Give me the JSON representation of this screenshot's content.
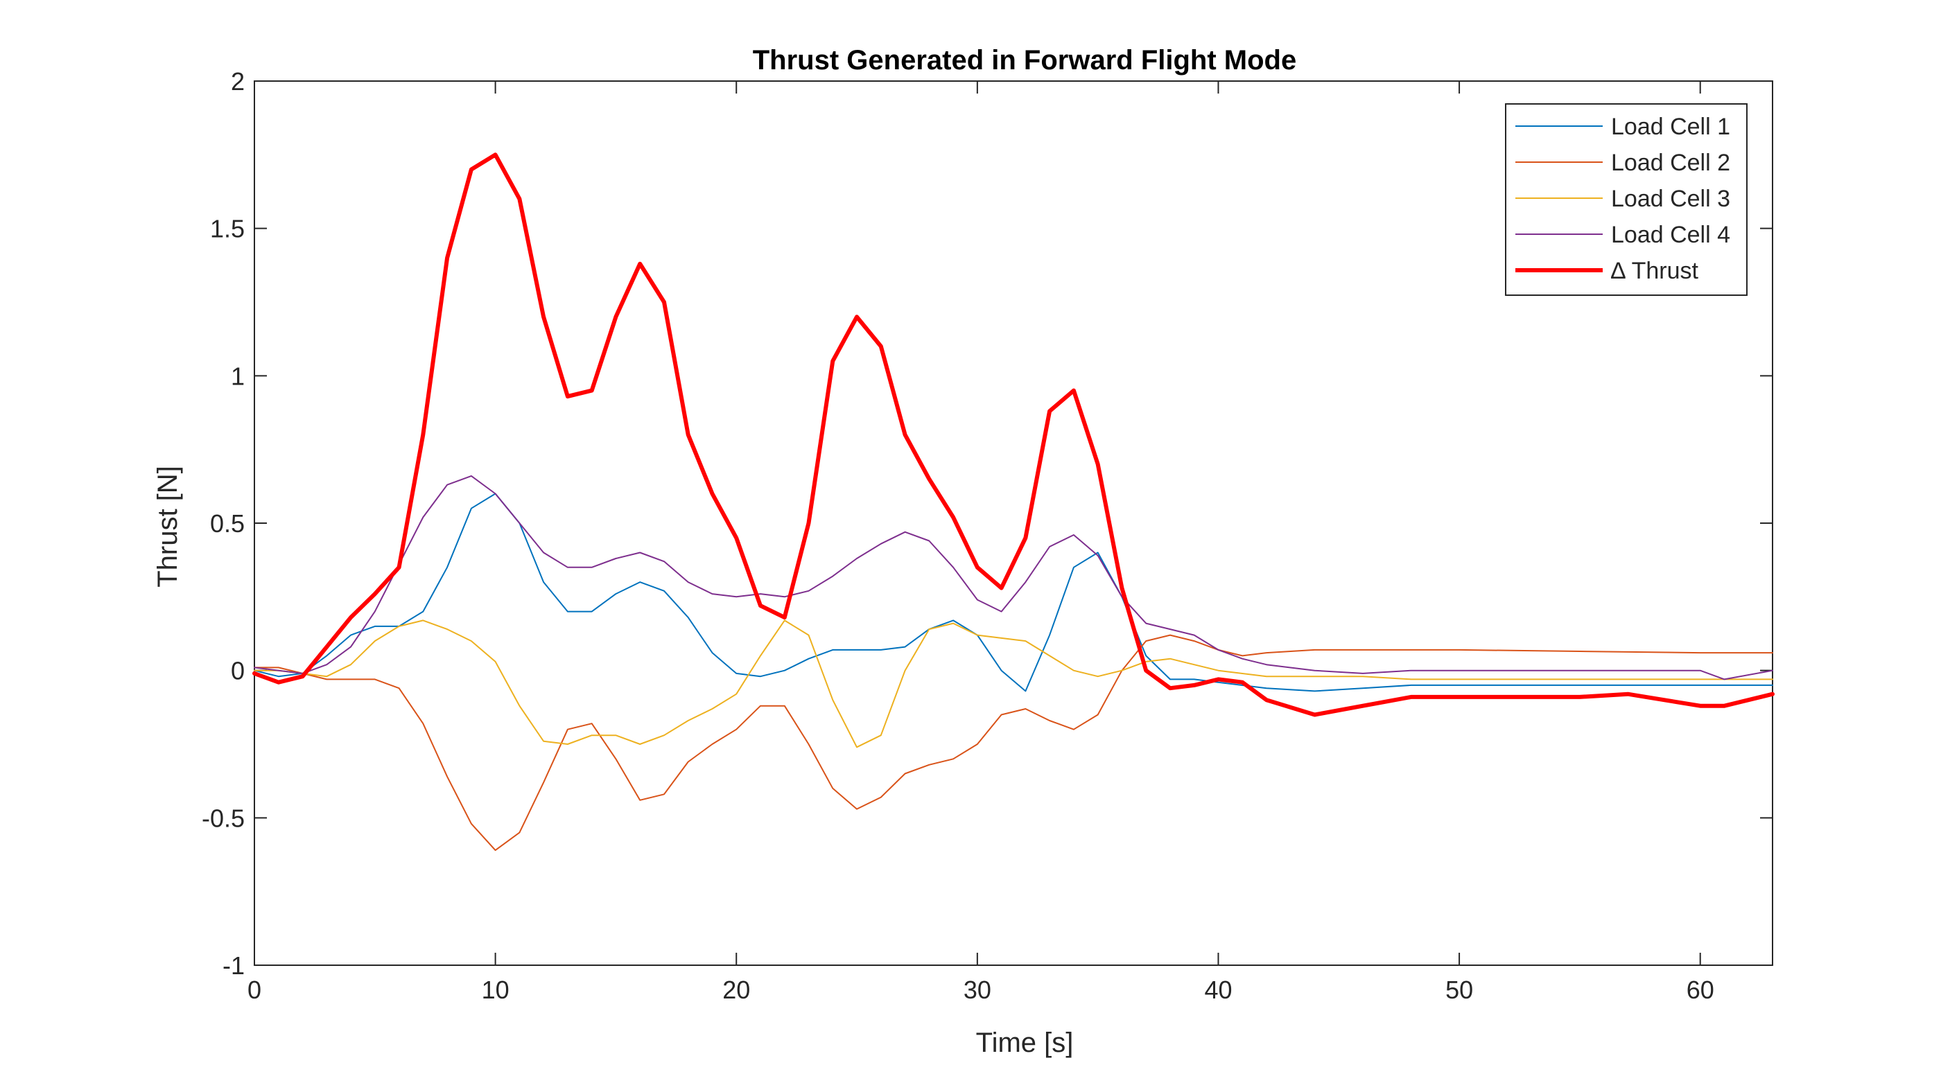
{
  "chart_data": {
    "type": "line",
    "title": "Thrust Generated in Forward Flight Mode",
    "xlabel": "Time [s]",
    "ylabel": "Thrust [N]",
    "xlim": [
      0,
      63
    ],
    "ylim": [
      -1,
      2
    ],
    "xticks": [
      0,
      10,
      20,
      30,
      40,
      50,
      60
    ],
    "yticks": [
      -1,
      -0.5,
      0,
      0.5,
      1,
      1.5,
      2
    ],
    "xtick_labels": [
      "0",
      "10",
      "20",
      "30",
      "40",
      "50",
      "60"
    ],
    "ytick_labels": [
      "-1",
      "-0.5",
      "0",
      "0.5",
      "1",
      "1.5",
      "2"
    ],
    "grid": false,
    "box": true,
    "legend_position": "top-right",
    "series": [
      {
        "name": "Load Cell 1",
        "color": "#0072BD",
        "width": 1,
        "x": [
          0,
          1,
          2,
          3,
          4,
          5,
          6,
          7,
          8,
          9,
          10,
          11,
          12,
          13,
          14,
          15,
          16,
          17,
          18,
          19,
          20,
          21,
          22,
          23,
          24,
          25,
          26,
          27,
          28,
          29,
          30,
          31,
          32,
          33,
          34,
          35,
          36,
          37,
          38,
          39,
          40,
          42,
          44,
          46,
          48,
          50,
          55,
          60,
          63
        ],
        "y": [
          0.0,
          -0.02,
          -0.01,
          0.05,
          0.12,
          0.15,
          0.15,
          0.2,
          0.35,
          0.55,
          0.6,
          0.5,
          0.3,
          0.2,
          0.2,
          0.26,
          0.3,
          0.27,
          0.18,
          0.06,
          -0.01,
          -0.02,
          0.0,
          0.04,
          0.07,
          0.07,
          0.07,
          0.08,
          0.14,
          0.17,
          0.12,
          0.0,
          -0.07,
          0.12,
          0.35,
          0.4,
          0.25,
          0.05,
          -0.03,
          -0.03,
          -0.04,
          -0.06,
          -0.07,
          -0.06,
          -0.05,
          -0.05,
          -0.05,
          -0.05,
          -0.05
        ]
      },
      {
        "name": "Load Cell 2",
        "color": "#D95319",
        "width": 1,
        "x": [
          0,
          1,
          2,
          3,
          4,
          5,
          6,
          7,
          8,
          9,
          10,
          11,
          12,
          13,
          14,
          15,
          16,
          17,
          18,
          19,
          20,
          21,
          22,
          23,
          24,
          25,
          26,
          27,
          28,
          29,
          30,
          31,
          32,
          33,
          34,
          35,
          36,
          37,
          38,
          39,
          40,
          41,
          42,
          44,
          46,
          48,
          50,
          55,
          60,
          63
        ],
        "y": [
          0.01,
          0.01,
          -0.01,
          -0.03,
          -0.03,
          -0.03,
          -0.06,
          -0.18,
          -0.36,
          -0.52,
          -0.61,
          -0.55,
          -0.38,
          -0.2,
          -0.18,
          -0.3,
          -0.44,
          -0.42,
          -0.31,
          -0.25,
          -0.2,
          -0.12,
          -0.12,
          -0.25,
          -0.4,
          -0.47,
          -0.43,
          -0.35,
          -0.32,
          -0.3,
          -0.25,
          -0.15,
          -0.13,
          -0.17,
          -0.2,
          -0.15,
          0.0,
          0.1,
          0.12,
          0.1,
          0.07,
          0.05,
          0.06,
          0.07,
          0.07,
          0.07,
          0.07,
          0.065,
          0.06,
          0.06
        ]
      },
      {
        "name": "Load Cell 3",
        "color": "#EDB120",
        "width": 1,
        "x": [
          0,
          1,
          2,
          3,
          4,
          5,
          6,
          7,
          8,
          9,
          10,
          11,
          12,
          13,
          14,
          15,
          16,
          17,
          18,
          19,
          20,
          21,
          22,
          23,
          24,
          25,
          26,
          27,
          28,
          29,
          30,
          31,
          32,
          33,
          34,
          35,
          36,
          37,
          38,
          39,
          40,
          42,
          44,
          46,
          48,
          50,
          55,
          60,
          63
        ],
        "y": [
          0.0,
          0.0,
          -0.01,
          -0.02,
          0.02,
          0.1,
          0.15,
          0.17,
          0.14,
          0.1,
          0.03,
          -0.12,
          -0.24,
          -0.25,
          -0.22,
          -0.22,
          -0.25,
          -0.22,
          -0.17,
          -0.13,
          -0.08,
          0.05,
          0.17,
          0.12,
          -0.1,
          -0.26,
          -0.22,
          0.0,
          0.14,
          0.16,
          0.12,
          0.11,
          0.1,
          0.05,
          0.0,
          -0.02,
          0.0,
          0.03,
          0.04,
          0.02,
          0.0,
          -0.02,
          -0.02,
          -0.02,
          -0.03,
          -0.03,
          -0.03,
          -0.03,
          -0.03
        ]
      },
      {
        "name": "Load Cell 4",
        "color": "#7E2F8E",
        "width": 1,
        "x": [
          0,
          1,
          2,
          3,
          4,
          5,
          6,
          7,
          8,
          9,
          10,
          11,
          12,
          13,
          14,
          15,
          16,
          17,
          18,
          19,
          20,
          21,
          22,
          23,
          24,
          25,
          26,
          27,
          28,
          29,
          30,
          31,
          32,
          33,
          34,
          35,
          36,
          37,
          38,
          39,
          40,
          41,
          42,
          44,
          46,
          48,
          50,
          55,
          60,
          61,
          63
        ],
        "y": [
          0.01,
          0.0,
          -0.01,
          0.02,
          0.08,
          0.2,
          0.36,
          0.52,
          0.63,
          0.66,
          0.6,
          0.5,
          0.4,
          0.35,
          0.35,
          0.38,
          0.4,
          0.37,
          0.3,
          0.26,
          0.25,
          0.26,
          0.25,
          0.27,
          0.32,
          0.38,
          0.43,
          0.47,
          0.44,
          0.35,
          0.24,
          0.2,
          0.3,
          0.42,
          0.46,
          0.39,
          0.25,
          0.16,
          0.14,
          0.12,
          0.07,
          0.04,
          0.02,
          0.0,
          -0.01,
          0.0,
          0.0,
          0.0,
          0.0,
          -0.03,
          0.0
        ]
      },
      {
        "name": "∆ Thrust",
        "color": "#FF0000",
        "width": 3,
        "x": [
          0,
          1,
          2,
          3,
          4,
          5,
          6,
          7,
          8,
          9,
          10,
          11,
          12,
          13,
          14,
          15,
          16,
          17,
          18,
          19,
          20,
          21,
          22,
          23,
          24,
          25,
          26,
          27,
          28,
          29,
          30,
          31,
          32,
          33,
          34,
          35,
          36,
          37,
          38,
          39,
          40,
          41,
          42,
          44,
          46,
          48,
          50,
          55,
          57,
          60,
          61,
          63
        ],
        "y": [
          -0.01,
          -0.04,
          -0.02,
          0.08,
          0.18,
          0.26,
          0.35,
          0.8,
          1.4,
          1.7,
          1.75,
          1.6,
          1.2,
          0.93,
          0.95,
          1.2,
          1.38,
          1.25,
          0.8,
          0.6,
          0.45,
          0.22,
          0.18,
          0.5,
          1.05,
          1.2,
          1.1,
          0.8,
          0.65,
          0.52,
          0.35,
          0.28,
          0.45,
          0.88,
          0.95,
          0.7,
          0.28,
          0.0,
          -0.06,
          -0.05,
          -0.03,
          -0.04,
          -0.1,
          -0.15,
          -0.12,
          -0.09,
          -0.09,
          -0.09,
          -0.08,
          -0.12,
          -0.12,
          -0.08
        ]
      }
    ]
  }
}
